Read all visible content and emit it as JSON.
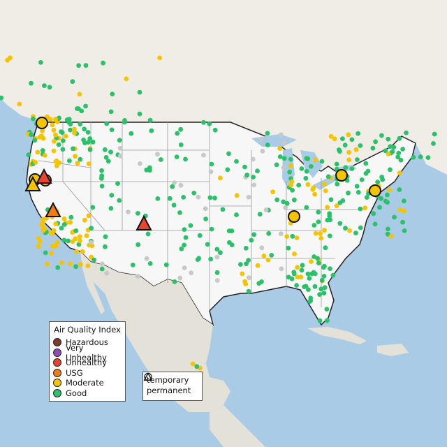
{
  "legend": {
    "title": "Air Quality Index",
    "categories": [
      {
        "label": "Hazardous",
        "color": "#7b3b2f"
      },
      {
        "label": "Very Unhealthy",
        "color": "#8f4fb0"
      },
      {
        "label": "Unhealthy",
        "color": "#e8452c"
      },
      {
        "label": "USG",
        "color": "#ee7d12"
      },
      {
        "label": "Moderate",
        "color": "#f5c400"
      },
      {
        "label": "Good",
        "color": "#2bc16a"
      }
    ],
    "site_types": [
      {
        "label": "temporary",
        "icon": "circle-icon"
      },
      {
        "label": "permanent",
        "icon": "triangle-icon"
      }
    ]
  },
  "colors": {
    "water": "#a9cbe5",
    "land": "#f0ece6",
    "us": "#f7f7f7",
    "terrain": "#e4e1d8",
    "nodata": "#c8c8c8"
  }
}
